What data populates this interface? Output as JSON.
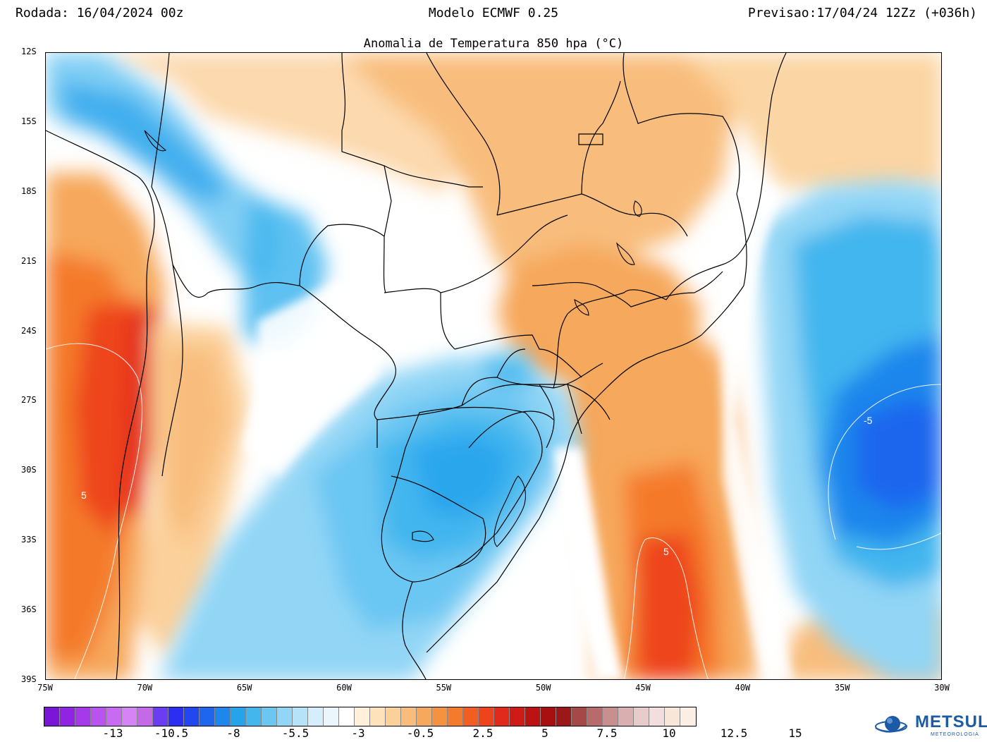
{
  "header": {
    "run": "Rodada: 16/04/2024 00z",
    "model": "Modelo ECMWF 0.25",
    "forecast": "Previsao:17/04/24 12Zz (+036h)"
  },
  "map": {
    "title": "Anomalia de Temperatura 850 hpa (°C)",
    "lat_labels": [
      "12S",
      "15S",
      "18S",
      "21S",
      "24S",
      "27S",
      "30S",
      "33S",
      "36S",
      "39S"
    ],
    "lon_labels": [
      "75W",
      "70W",
      "65W",
      "60W",
      "55W",
      "50W",
      "45W",
      "40W",
      "35W",
      "30W"
    ],
    "contour_labels": [
      "5",
      "5",
      "-5"
    ]
  },
  "colorbar": {
    "colors": [
      "#7b16d9",
      "#9124e3",
      "#a63aeb",
      "#b853ef",
      "#c86bf2",
      "#d583f5",
      "#c46ae9",
      "#6a3df0",
      "#2c2ef2",
      "#2246f0",
      "#1f66ee",
      "#1f86ec",
      "#27a3ec",
      "#43b6ee",
      "#6bc6f2",
      "#92d5f5",
      "#b6e3f8",
      "#d5eefa",
      "#eaf6fc",
      "#ffffff",
      "#fff0dc",
      "#fde2bb",
      "#fbd09a",
      "#f8bd7d",
      "#f6a85c",
      "#f59242",
      "#f47a2c",
      "#f25e22",
      "#ee441e",
      "#e12a1b",
      "#d01a18",
      "#bb1214",
      "#a80f10",
      "#9c1818",
      "#a64848",
      "#b86b6b",
      "#c98f8f",
      "#d9afaf",
      "#e8cbcb",
      "#f2dede",
      "#f8e6d9",
      "#fbeee4"
    ],
    "labels": [
      "-13",
      "-10.5",
      "-8",
      "-5.5",
      "-3",
      "-0.5",
      "2.5",
      "5",
      "7.5",
      "10",
      "12.5",
      "15"
    ]
  },
  "logo": {
    "name": "METSUL",
    "subtitle": "METEOROLOGIA"
  }
}
